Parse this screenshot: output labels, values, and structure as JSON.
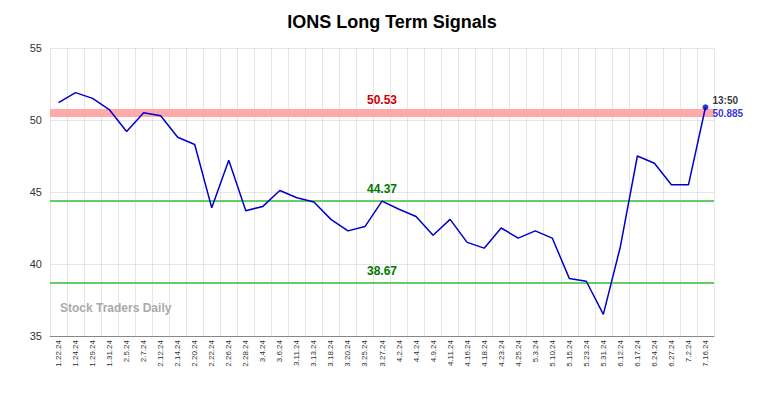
{
  "chart_data": {
    "type": "line",
    "title": "IONS Long Term Signals",
    "color": "#0000cc",
    "categories": [
      "1.22.24",
      "1.24.24",
      "1.29.24",
      "1.31.24",
      "2.5.24",
      "2.7.24",
      "2.12.24",
      "2.14.24",
      "2.20.24",
      "2.22.24",
      "2.26.24",
      "2.28.24",
      "3.4.24",
      "3.6.24",
      "3.11.24",
      "3.13.24",
      "3.18.24",
      "3.20.24",
      "3.25.24",
      "3.27.24",
      "4.2.24",
      "4.4.24",
      "4.9.24",
      "4.11.24",
      "4.16.24",
      "4.18.24",
      "4.23.24",
      "4.25.24",
      "5.3.24",
      "5.10.24",
      "5.15.24",
      "5.23.24",
      "5.31.24",
      "6.12.24",
      "6.17.24",
      "6.24.24",
      "6.27.24",
      "7.2.24",
      "7.16.24"
    ],
    "values": [
      51.2,
      51.9,
      51.5,
      50.7,
      49.2,
      50.5,
      50.3,
      48.8,
      48.3,
      43.9,
      47.2,
      43.7,
      44.0,
      45.1,
      44.6,
      44.3,
      43.1,
      42.3,
      42.6,
      44.37,
      43.8,
      43.3,
      42.0,
      43.1,
      41.5,
      41.1,
      42.5,
      41.8,
      42.3,
      41.8,
      39.0,
      38.8,
      36.5,
      41.2,
      47.5,
      47.0,
      45.5,
      45.5,
      50.885
    ],
    "hlines": [
      {
        "value": 50.53,
        "label": "50.53",
        "color": "#ffaaaa",
        "label_color": "#cc0000"
      },
      {
        "value": 44.37,
        "label": "44.37",
        "color": "#66cc66",
        "label_color": "#007700"
      },
      {
        "value": 38.67,
        "label": "38.67",
        "color": "#66cc66",
        "label_color": "#007700"
      }
    ],
    "annotations": [
      {
        "text": "13:50",
        "color": "#000000"
      },
      {
        "text": "50.885",
        "color": "#0000cc"
      }
    ],
    "watermark": "Stock Traders Daily",
    "ylim": [
      35,
      55
    ],
    "yticks": [
      35,
      40,
      45,
      50,
      55
    ],
    "grid": true
  }
}
